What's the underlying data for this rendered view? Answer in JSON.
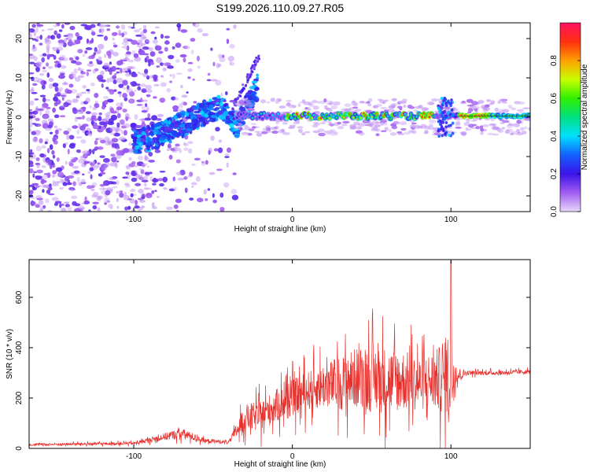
{
  "title": "S199.2026.110.09.27.R05",
  "chart_data": [
    {
      "type": "heatmap",
      "xlabel": "Height of straight line (km)",
      "ylabel": "Frequency (Hz)",
      "xlim": [
        -166,
        150
      ],
      "ylim": [
        -24,
        24
      ],
      "xticks": [
        -100,
        0,
        100
      ],
      "xtick_labels": [
        "-100",
        "0",
        "100"
      ],
      "yticks": [
        -20,
        -10,
        0,
        10,
        20
      ],
      "ytick_labels": [
        "-20",
        "-10",
        "0",
        "10",
        "20"
      ],
      "colorbar": {
        "label": "Normalized spectral amplitude",
        "range": [
          0,
          1
        ],
        "ticks": [
          0.0,
          0.2,
          0.4,
          0.6,
          0.8
        ],
        "tick_labels": [
          "0.0",
          "0.2",
          "0.4",
          "0.6",
          "0.8"
        ]
      },
      "ridge": {
        "x": [
          -95,
          -80,
          -60,
          -45,
          -35,
          -25,
          -10,
          0,
          50,
          95,
          105,
          150
        ],
        "freq": [
          -6,
          -4,
          0,
          3,
          -2,
          0,
          0,
          0,
          0,
          0,
          0,
          0
        ]
      }
    },
    {
      "type": "line",
      "xlabel": "Height of straight line (km)",
      "ylabel": "SNR (10 * v/v)",
      "xlim": [
        -166,
        150
      ],
      "ylim": [
        0,
        750
      ],
      "xticks": [
        -100,
        0,
        100
      ],
      "xtick_labels": [
        "-100",
        "0",
        "100"
      ],
      "yticks": [
        0,
        200,
        400,
        600
      ],
      "ytick_labels": [
        "0",
        "200",
        "400",
        "600"
      ],
      "color": "#e8302c",
      "envelope": {
        "x": [
          -166,
          -100,
          -85,
          -70,
          -55,
          -40,
          -30,
          -20,
          -10,
          0,
          10,
          20,
          30,
          40,
          50,
          60,
          70,
          80,
          90,
          97,
          100,
          103,
          110,
          130,
          150
        ],
        "base": [
          15,
          20,
          40,
          60,
          30,
          25,
          120,
          130,
          170,
          200,
          230,
          250,
          260,
          280,
          280,
          270,
          270,
          260,
          270,
          280,
          300,
          290,
          300,
          300,
          305
        ],
        "spread": [
          8,
          10,
          20,
          35,
          15,
          10,
          90,
          100,
          110,
          120,
          130,
          150,
          180,
          200,
          230,
          220,
          200,
          180,
          200,
          250,
          350,
          60,
          15,
          15,
          15
        ]
      },
      "peak": {
        "x": 100,
        "y": 745
      }
    }
  ]
}
